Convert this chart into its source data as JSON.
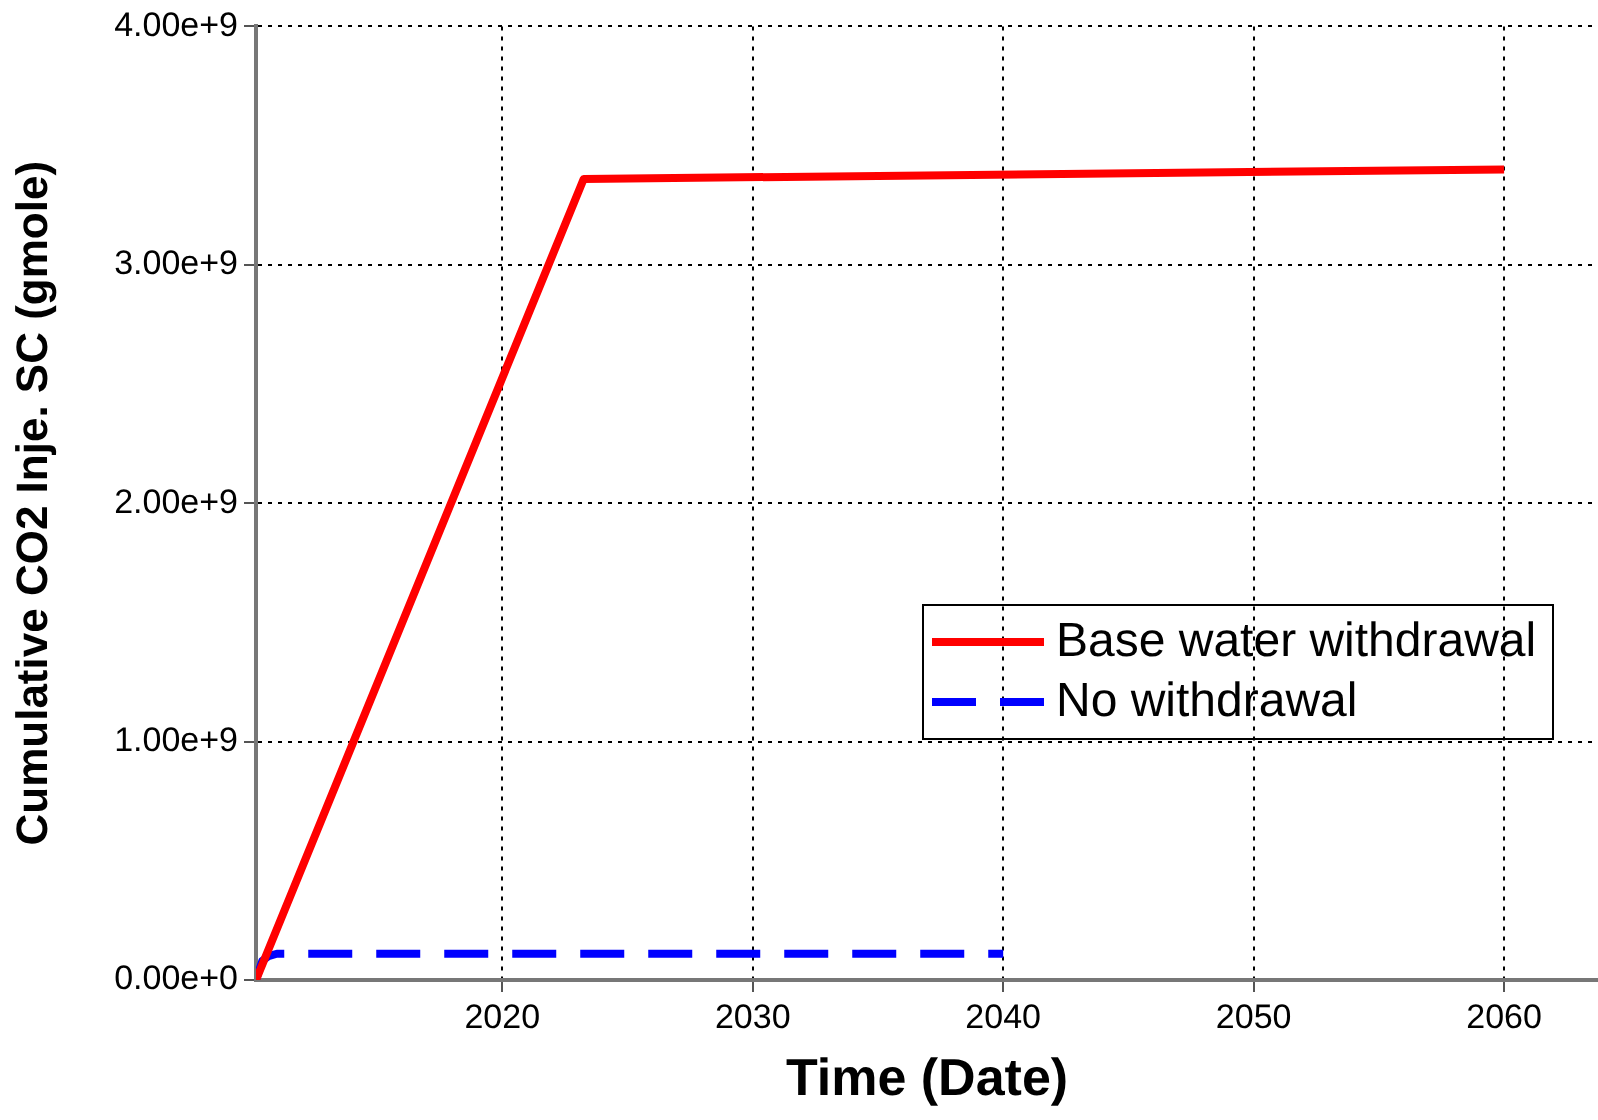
{
  "chart_data": {
    "type": "line",
    "xlabel": "Time (Date)",
    "ylabel": "Cumulative CO2 Inje. SC (gmole)",
    "xlim": [
      "2010-03",
      "2063-10"
    ],
    "xticks": [
      "2020",
      "2030",
      "2040",
      "2050",
      "2060"
    ],
    "ylim": [
      0,
      4000000000
    ],
    "yticks": [
      {
        "value": 0,
        "label": "0.00e+0"
      },
      {
        "value": 1000000000,
        "label": "1.00e+9"
      },
      {
        "value": 2000000000,
        "label": "2.00e+9"
      },
      {
        "value": 3000000000,
        "label": "3.00e+9"
      },
      {
        "value": 4000000000,
        "label": "4.00e+9"
      }
    ],
    "grid": true,
    "legend": "right",
    "marker": "none",
    "series": [
      {
        "name": "Base water withdrawal",
        "color": "#ff0000",
        "line_style": "solid",
        "x": [
          "2010-03",
          "2023-04",
          "2060-01"
        ],
        "values": [
          0,
          3360000000,
          3400000000
        ]
      },
      {
        "name": "No withdrawal",
        "color": "#0000ff",
        "line_style": "dashed",
        "x": [
          "2010-03",
          "2010-06",
          "2010-09",
          "2011-01",
          "2040-01"
        ],
        "values": [
          0,
          80000000,
          100000000,
          110000000,
          110000000
        ]
      }
    ]
  }
}
